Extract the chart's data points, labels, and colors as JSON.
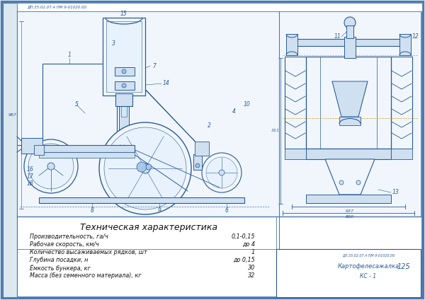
{
  "bg_color": "#dce8f0",
  "border_color": "#4a7ab0",
  "line_color": "#2a5a9a",
  "line_color2": "#3a6aaa",
  "fill_light": "#cfe0f0",
  "fill_mid": "#b8d0ea",
  "fill_white": "#f0f6fc",
  "title": "Техническая характеристика",
  "specs": [
    [
      "Производительность, га/ч",
      "0,1-0,15"
    ],
    [
      "Рабочая скорость, км/ч",
      "до 4"
    ],
    [
      "Количество высаживаемых рядков, шт",
      "1"
    ],
    [
      "Глубина посадки, н",
      "до 0,15"
    ],
    [
      "Ёмкость бункера, кг",
      "30"
    ],
    [
      "Масса (без семенного материала), кг",
      "32"
    ]
  ],
  "title_fontsize": 9,
  "spec_fontsize": 5.8,
  "stamp_text1": "Картофелесажалка",
  "stamp_text2": "КС - 1",
  "doc_num": "ДП.35.02.07.4 ПМ 9-01020.00",
  "sheet_num": "125"
}
